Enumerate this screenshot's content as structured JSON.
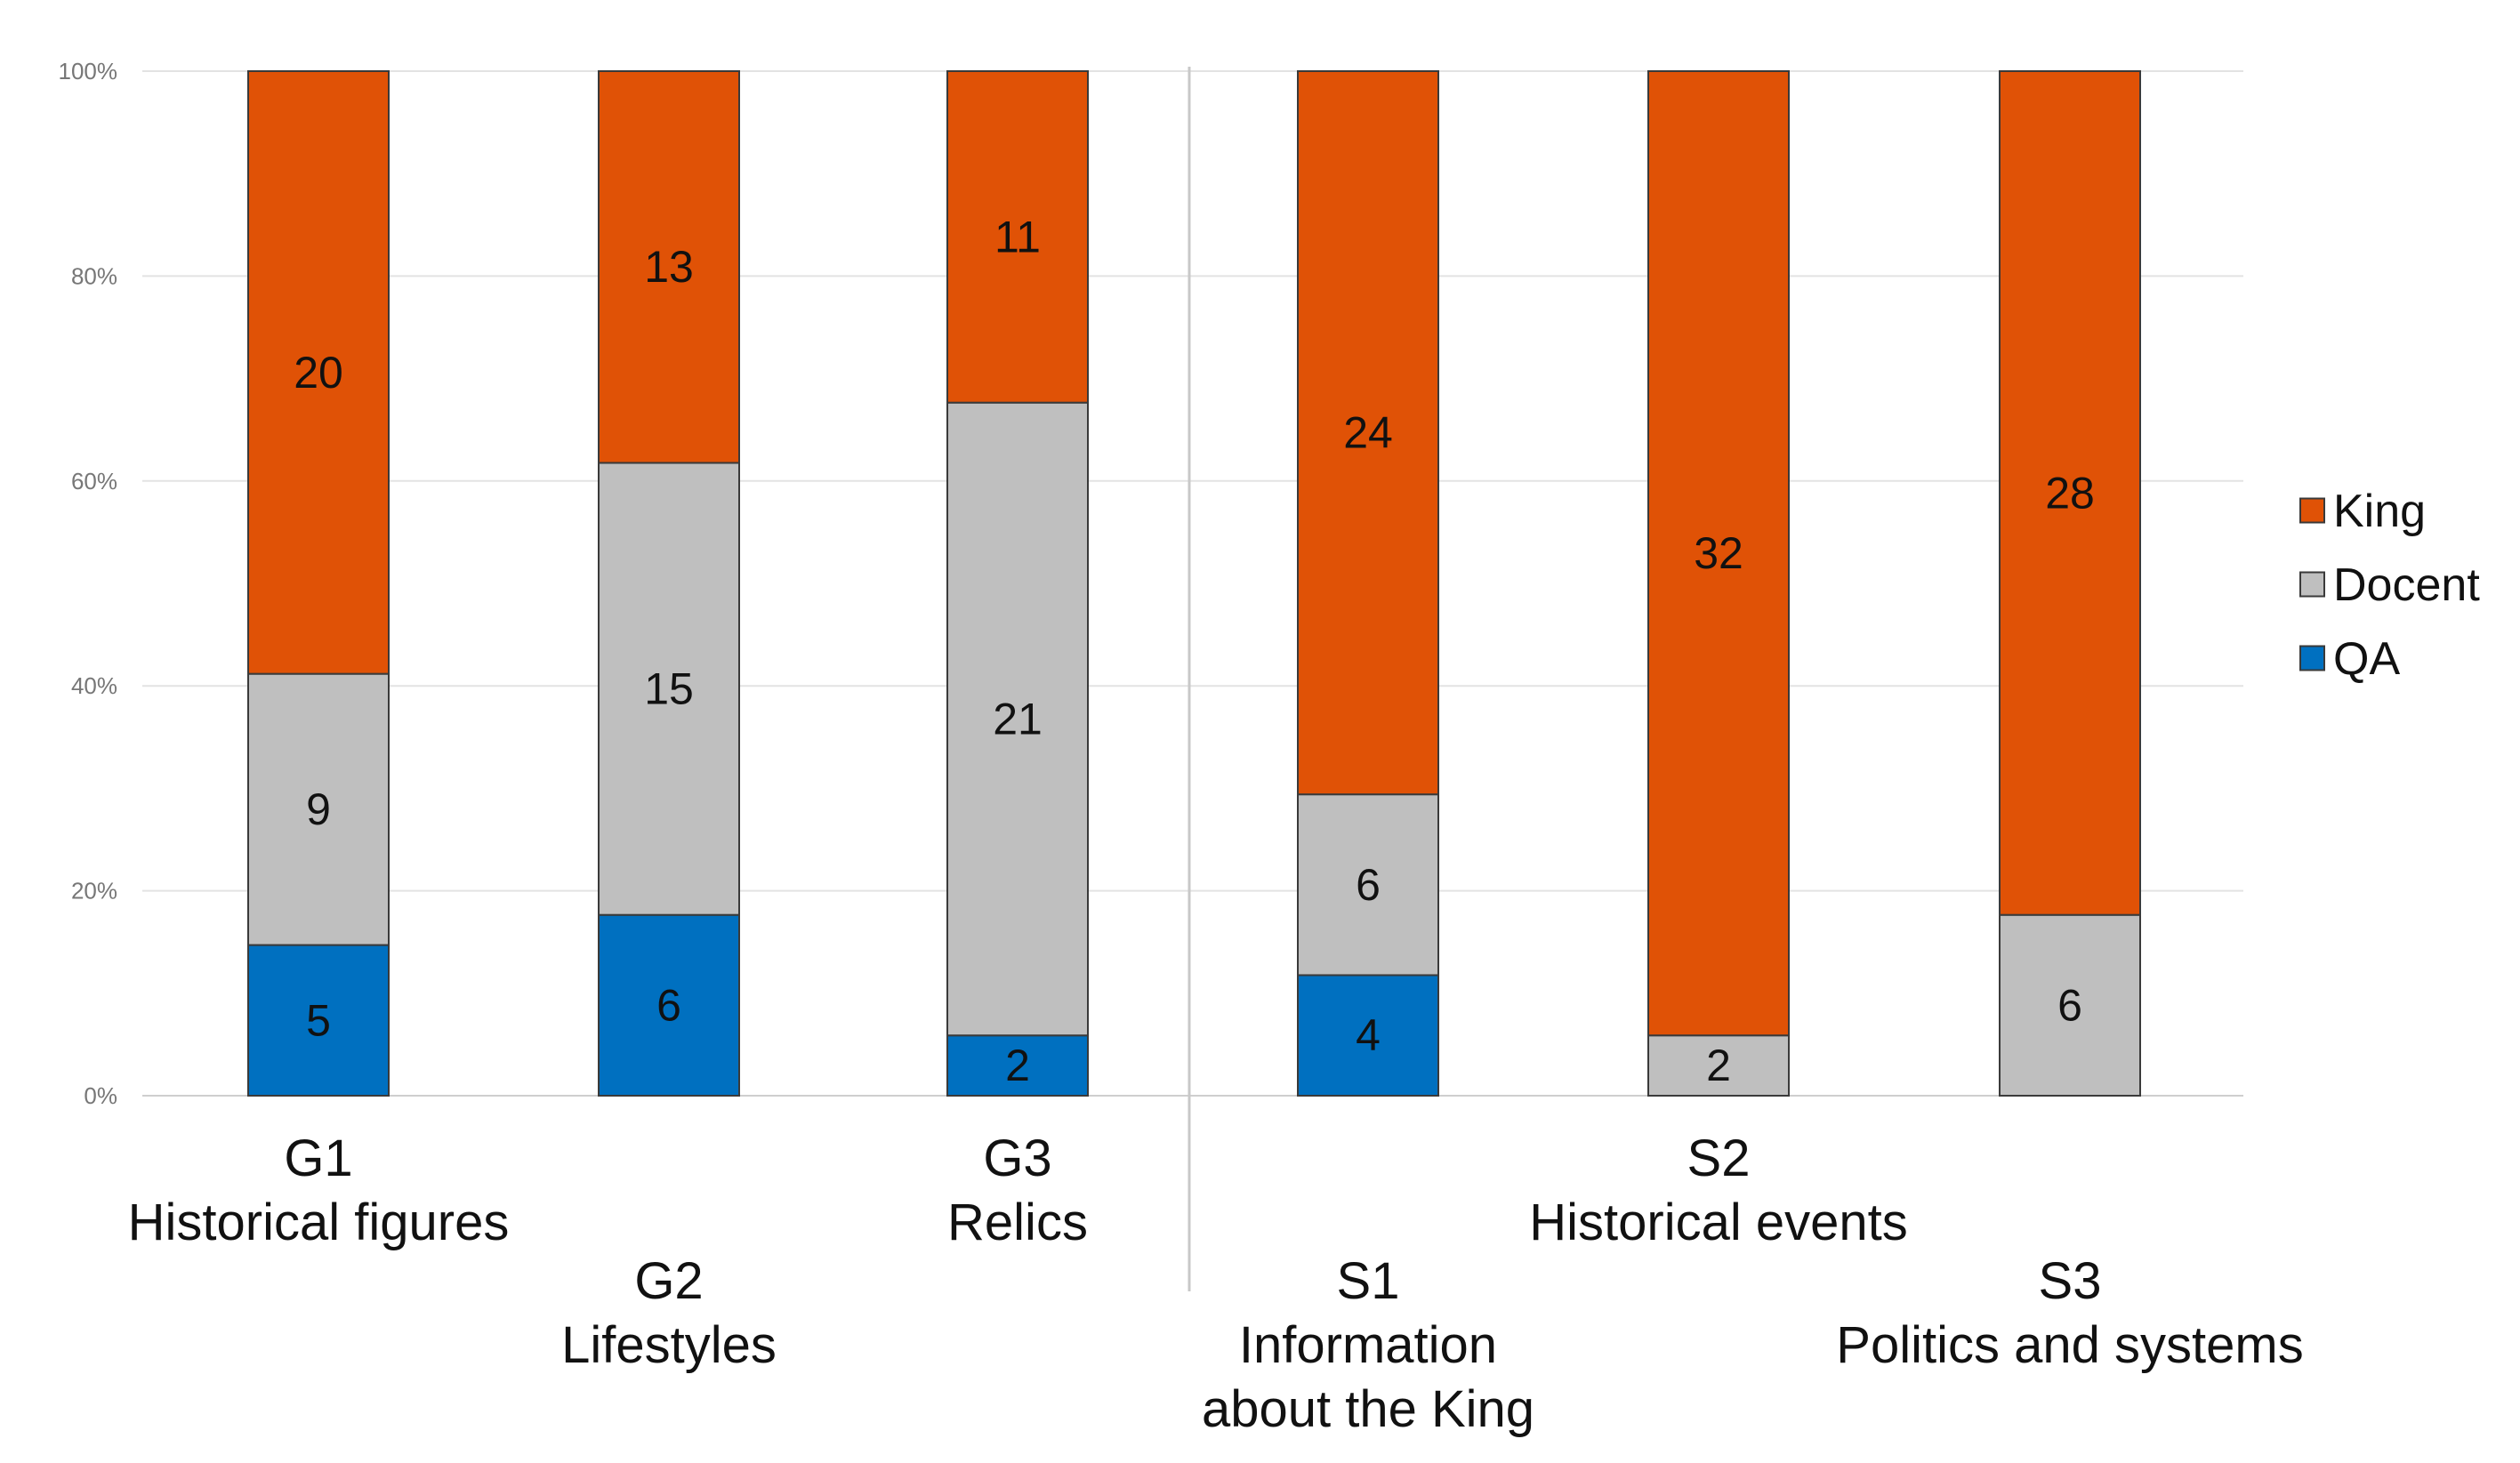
{
  "chart_data": {
    "type": "bar",
    "stacked": true,
    "normalized": true,
    "title": "",
    "xlabel": "",
    "ylabel": "",
    "ylim": [
      0,
      100
    ],
    "y_ticks": [
      "0%",
      "20%",
      "40%",
      "60%",
      "80%",
      "100%"
    ],
    "y_tick_values": [
      0,
      20,
      40,
      60,
      80,
      100
    ],
    "grid": true,
    "legend_position": "right",
    "categories": [
      {
        "code": "G1",
        "name": [
          "Historical figures"
        ]
      },
      {
        "code": "G2",
        "name": [
          "Lifestyles"
        ]
      },
      {
        "code": "G3",
        "name": [
          "Relics"
        ]
      },
      {
        "code": "S1",
        "name": [
          "Information",
          "about the King"
        ]
      },
      {
        "code": "S2",
        "name": [
          "Historical events"
        ]
      },
      {
        "code": "S3",
        "name": [
          "Politics and systems"
        ]
      }
    ],
    "series": [
      {
        "name": "QA",
        "color": "#0070C0",
        "values": [
          5,
          6,
          2,
          4,
          0,
          0
        ]
      },
      {
        "name": "Docent",
        "color": "#BFBFBF",
        "values": [
          9,
          15,
          21,
          6,
          2,
          6
        ]
      },
      {
        "name": "King",
        "color": "#E05206",
        "values": [
          20,
          13,
          11,
          24,
          32,
          28
        ]
      }
    ],
    "legend_order": [
      "King",
      "Docent",
      "QA"
    ],
    "separator_after_category": 3
  }
}
